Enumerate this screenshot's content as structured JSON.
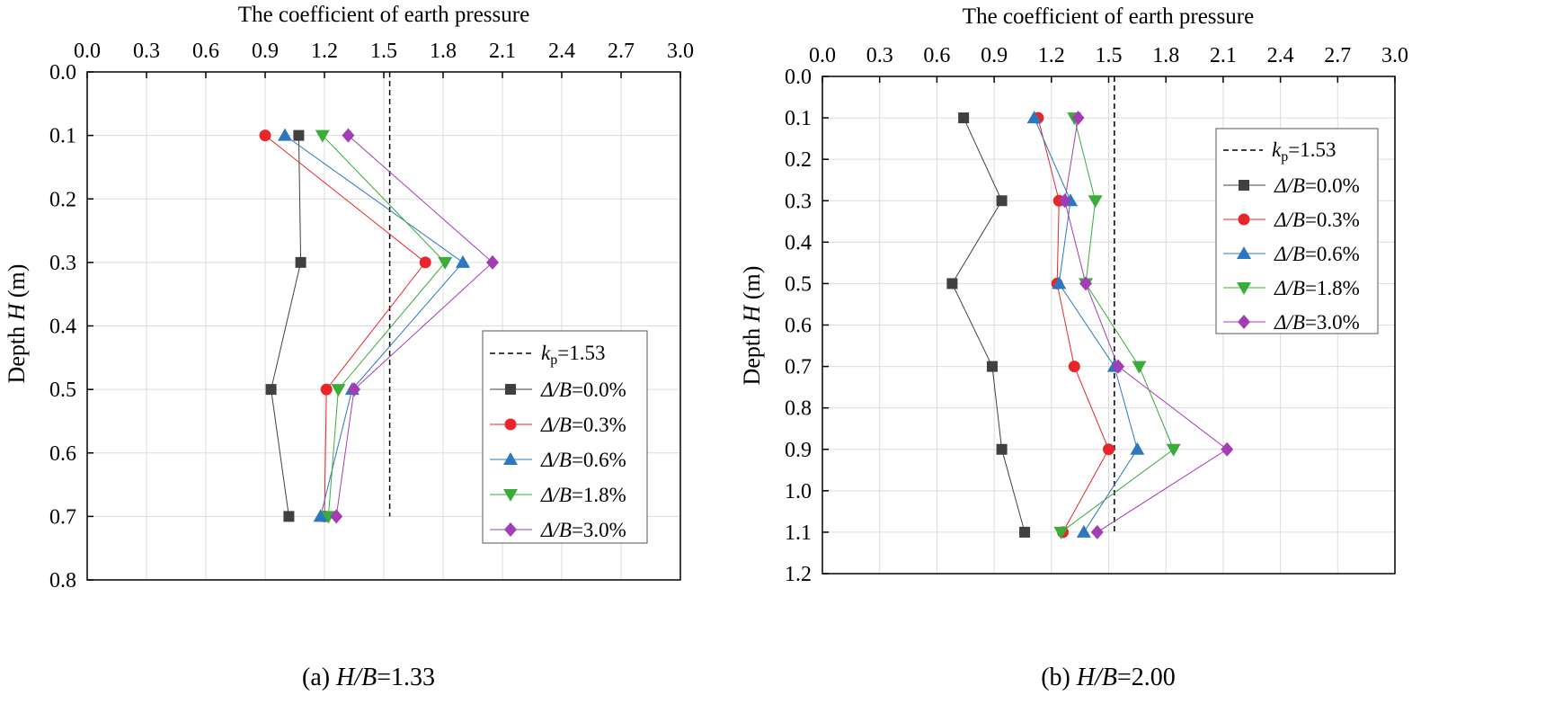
{
  "figure": {
    "subplots": [
      {
        "caption_prefix": "(a) ",
        "caption_var": "H/B",
        "caption_value": "=1.33"
      },
      {
        "caption_prefix": "(b) ",
        "caption_var": "H/B",
        "caption_value": "=2.00"
      }
    ]
  },
  "chart_data": [
    {
      "type": "line",
      "title": "The coefficient of earth pressure",
      "ylabel_prefix": "Depth ",
      "ylabel_var": "H",
      "ylabel_suffix": " (m)",
      "xlim": [
        0,
        3.0
      ],
      "ylim": [
        0,
        0.8
      ],
      "y_inverted": true,
      "x_axis_position": "top",
      "grid": true,
      "xticks": [
        "0.0",
        "0.3",
        "0.6",
        "0.9",
        "1.2",
        "1.5",
        "1.8",
        "2.1",
        "2.4",
        "2.7",
        "3.0"
      ],
      "yticks": [
        "0.0",
        "0.1",
        "0.2",
        "0.3",
        "0.4",
        "0.5",
        "0.6",
        "0.7",
        "0.8"
      ],
      "legend_position": "lower-right",
      "reference_line": {
        "label_sym": "k",
        "label_sub": "p",
        "label_value": "=1.53",
        "x": 1.53,
        "y_range": [
          0.0,
          0.7
        ],
        "style": "dashed"
      },
      "series": [
        {
          "name": "Δ/B=0.0%",
          "var": "Δ/B",
          "value": "=0.0%",
          "color": "#404040",
          "marker": "square",
          "x": [
            1.07,
            1.08,
            0.93,
            1.02
          ],
          "y": [
            0.1,
            0.3,
            0.5,
            0.7
          ]
        },
        {
          "name": "Δ/B=0.3%",
          "var": "Δ/B",
          "value": "=0.3%",
          "color": "#e8262a",
          "marker": "circle",
          "x": [
            0.9,
            1.71,
            1.21,
            1.2
          ],
          "y": [
            0.1,
            0.3,
            0.5,
            0.7
          ]
        },
        {
          "name": "Δ/B=0.6%",
          "var": "Δ/B",
          "value": "=0.6%",
          "color": "#2b77c0",
          "marker": "triangle",
          "x": [
            1.0,
            1.9,
            1.34,
            1.18
          ],
          "y": [
            0.1,
            0.3,
            0.5,
            0.7
          ]
        },
        {
          "name": "Δ/B=1.8%",
          "var": "Δ/B",
          "value": "=1.8%",
          "color": "#3aac3a",
          "marker": "tri-down",
          "x": [
            1.19,
            1.81,
            1.27,
            1.22
          ],
          "y": [
            0.1,
            0.3,
            0.5,
            0.7
          ]
        },
        {
          "name": "Δ/B=3.0%",
          "var": "Δ/B",
          "value": "=3.0%",
          "color": "#a23db4",
          "marker": "diamond",
          "x": [
            1.32,
            2.05,
            1.35,
            1.26
          ],
          "y": [
            0.1,
            0.3,
            0.5,
            0.7
          ]
        }
      ]
    },
    {
      "type": "line",
      "title": "The coefficient of earth pressure",
      "ylabel_prefix": "Depth ",
      "ylabel_var": "H",
      "ylabel_suffix": " (m)",
      "xlim": [
        0,
        3.0
      ],
      "ylim": [
        0,
        1.2
      ],
      "y_inverted": true,
      "x_axis_position": "top",
      "grid": true,
      "xticks": [
        "0.0",
        "0.3",
        "0.6",
        "0.9",
        "1.2",
        "1.5",
        "1.8",
        "2.1",
        "2.4",
        "2.7",
        "3.0"
      ],
      "yticks": [
        "0.0",
        "0.1",
        "0.2",
        "0.3",
        "0.4",
        "0.5",
        "0.6",
        "0.7",
        "0.8",
        "0.9",
        "1.0",
        "1.1",
        "1.2"
      ],
      "legend_position": "upper-right",
      "reference_line": {
        "label_sym": "k",
        "label_sub": "p",
        "label_value": "=1.53",
        "x": 1.53,
        "y_range": [
          0.0,
          1.1
        ],
        "style": "dashed"
      },
      "series": [
        {
          "name": "Δ/B=0.0%",
          "var": "Δ/B",
          "value": "=0.0%",
          "color": "#404040",
          "marker": "square",
          "x": [
            0.74,
            0.94,
            0.68,
            0.89,
            0.94,
            1.06
          ],
          "y": [
            0.1,
            0.3,
            0.5,
            0.7,
            0.9,
            1.1
          ]
        },
        {
          "name": "Δ/B=0.3%",
          "var": "Δ/B",
          "value": "=0.3%",
          "color": "#e8262a",
          "marker": "circle",
          "x": [
            1.13,
            1.24,
            1.23,
            1.32,
            1.5,
            1.26
          ],
          "y": [
            0.1,
            0.3,
            0.5,
            0.7,
            0.9,
            1.1
          ]
        },
        {
          "name": "Δ/B=0.6%",
          "var": "Δ/B",
          "value": "=0.6%",
          "color": "#2b77c0",
          "marker": "triangle",
          "x": [
            1.11,
            1.3,
            1.24,
            1.53,
            1.65,
            1.37
          ],
          "y": [
            0.1,
            0.3,
            0.5,
            0.7,
            0.9,
            1.1
          ]
        },
        {
          "name": "Δ/B=1.8%",
          "var": "Δ/B",
          "value": "=1.8%",
          "color": "#3aac3a",
          "marker": "tri-down",
          "x": [
            1.32,
            1.43,
            1.38,
            1.66,
            1.84,
            1.25
          ],
          "y": [
            0.1,
            0.3,
            0.5,
            0.7,
            0.9,
            1.1
          ]
        },
        {
          "name": "Δ/B=3.0%",
          "var": "Δ/B",
          "value": "=3.0%",
          "color": "#a23db4",
          "marker": "diamond",
          "x": [
            1.34,
            1.27,
            1.38,
            1.55,
            2.12,
            1.44
          ],
          "y": [
            0.1,
            0.3,
            0.5,
            0.7,
            0.9,
            1.1
          ]
        }
      ]
    }
  ]
}
